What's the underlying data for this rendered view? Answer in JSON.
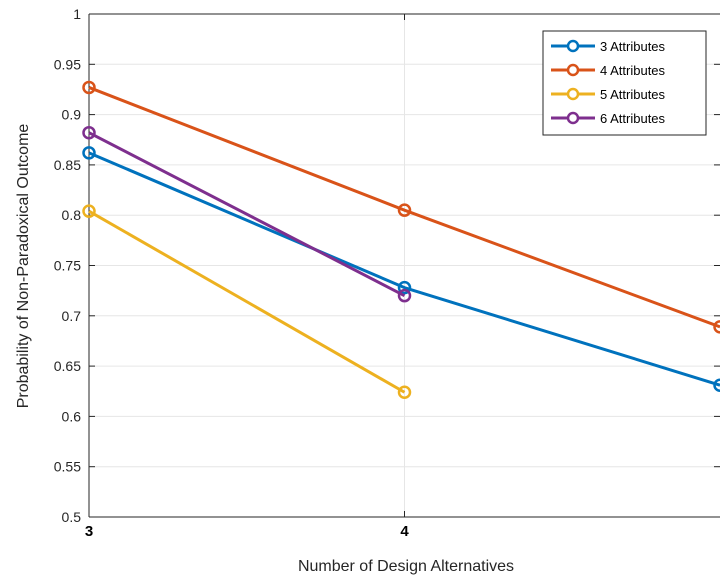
{
  "chart_data": {
    "type": "line",
    "title": "",
    "xlabel": "Number of Design Alternatives",
    "ylabel": "Probability of Non-Paradoxical Outcome",
    "x_ticks": [
      "3",
      "4"
    ],
    "y_ticks": [
      "0.5",
      "0.55",
      "0.6",
      "0.65",
      "0.7",
      "0.75",
      "0.8",
      "0.85",
      "0.9",
      "0.95",
      "1"
    ],
    "xlim": [
      3,
      5
    ],
    "ylim": [
      0.5,
      1
    ],
    "grid": true,
    "legend_position": "top-right",
    "series": [
      {
        "name": "3 Attributes",
        "color": "#0072BD",
        "x": [
          3,
          4,
          5
        ],
        "y": [
          0.862,
          0.728,
          0.631
        ]
      },
      {
        "name": "4 Attributes",
        "color": "#D95319",
        "x": [
          3,
          4,
          5
        ],
        "y": [
          0.927,
          0.805,
          0.689
        ]
      },
      {
        "name": "5 Attributes",
        "color": "#EDB120",
        "x": [
          3,
          4
        ],
        "y": [
          0.804,
          0.624
        ]
      },
      {
        "name": "6 Attributes",
        "color": "#7E2F8E",
        "x": [
          3,
          4
        ],
        "y": [
          0.882,
          0.72
        ]
      }
    ]
  }
}
